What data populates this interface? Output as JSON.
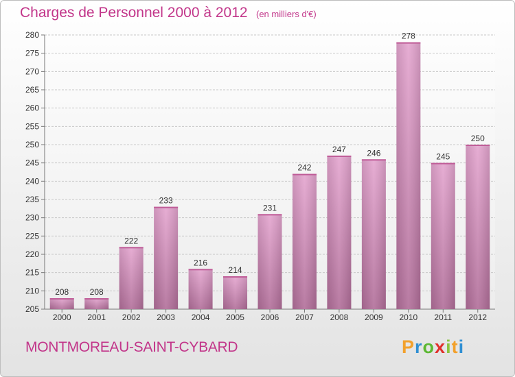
{
  "title": "Charges de Personnel 2000 à 2012",
  "subtitle": "(en milliers d'€)",
  "commune": "MONTMOREAU-SAINT-CYBARD",
  "logo": {
    "letters": [
      "P",
      "r",
      "o",
      "x",
      "i",
      "t",
      "i"
    ],
    "colors": [
      "#f2a12d",
      "#2f8fd3",
      "#5cb833",
      "#e0302b",
      "#8bc43f",
      "#f2a12d",
      "#2f8fd3"
    ]
  },
  "colors": {
    "bar_top": "#e4a5cf",
    "bar_bottom": "#b16e99",
    "grid": "#c8c8c8",
    "text": "#333333"
  },
  "chart_data": {
    "type": "bar",
    "categories": [
      "2000",
      "2001",
      "2002",
      "2003",
      "2004",
      "2005",
      "2006",
      "2007",
      "2008",
      "2009",
      "2010",
      "2011",
      "2012"
    ],
    "values": [
      208,
      208,
      222,
      233,
      216,
      214,
      231,
      242,
      247,
      246,
      278,
      245,
      250
    ],
    "ylim": [
      205,
      280
    ],
    "yticks": [
      205,
      210,
      215,
      220,
      225,
      230,
      235,
      240,
      245,
      250,
      255,
      260,
      265,
      270,
      275,
      280
    ],
    "grid": true,
    "xlabel": "",
    "ylabel": ""
  }
}
